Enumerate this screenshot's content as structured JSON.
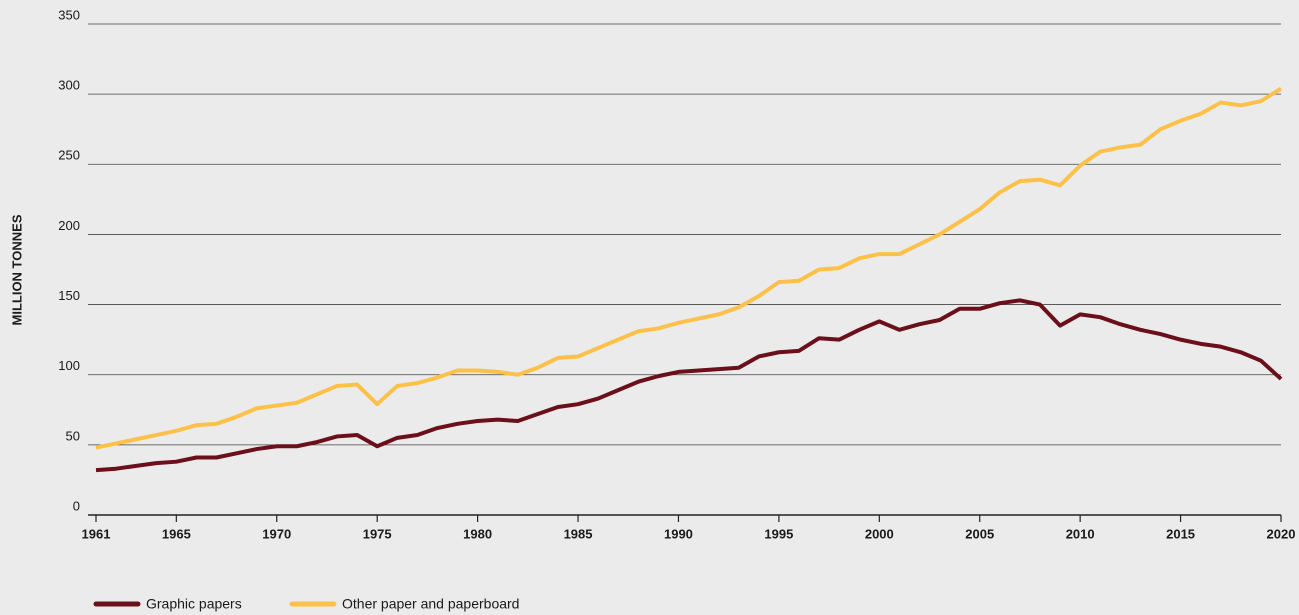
{
  "chart_data": {
    "type": "line",
    "y_label": "MILLION TONNES",
    "x": [
      1961,
      1962,
      1963,
      1964,
      1965,
      1966,
      1967,
      1968,
      1969,
      1970,
      1971,
      1972,
      1973,
      1974,
      1975,
      1976,
      1977,
      1978,
      1979,
      1980,
      1981,
      1982,
      1983,
      1984,
      1985,
      1986,
      1987,
      1988,
      1989,
      1990,
      1991,
      1992,
      1993,
      1994,
      1995,
      1996,
      1997,
      1998,
      1999,
      2000,
      2001,
      2002,
      2003,
      2004,
      2005,
      2006,
      2007,
      2008,
      2009,
      2010,
      2011,
      2012,
      2013,
      2014,
      2015,
      2016,
      2017,
      2018,
      2019,
      2020
    ],
    "series": [
      {
        "name": "Graphic papers",
        "color": "#6b0f1a",
        "values": [
          32,
          33,
          35,
          37,
          38,
          41,
          41,
          44,
          47,
          49,
          49,
          52,
          56,
          57,
          49,
          55,
          57,
          62,
          65,
          67,
          68,
          67,
          72,
          77,
          79,
          83,
          89,
          95,
          99,
          102,
          103,
          104,
          105,
          113,
          116,
          117,
          126,
          125,
          132,
          138,
          132,
          136,
          139,
          147,
          147,
          151,
          153,
          150,
          135,
          143,
          141,
          136,
          132,
          129,
          125,
          122,
          120,
          116,
          110,
          97
        ]
      },
      {
        "name": "Other paper and paperboard",
        "color": "#fdc149",
        "values": [
          48,
          51,
          54,
          57,
          60,
          64,
          65,
          70,
          76,
          78,
          80,
          86,
          92,
          93,
          79,
          92,
          94,
          98,
          103,
          103,
          102,
          100,
          105,
          112,
          113,
          119,
          125,
          131,
          133,
          137,
          140,
          143,
          148,
          156,
          166,
          167,
          175,
          176,
          183,
          186,
          186,
          193,
          200,
          209,
          218,
          230,
          238,
          239,
          235,
          249,
          259,
          262,
          264,
          275,
          281,
          286,
          294,
          292,
          295,
          304
        ]
      }
    ],
    "xlim": [
      1961,
      2020
    ],
    "xticks": [
      1961,
      1965,
      1970,
      1975,
      1980,
      1985,
      1990,
      1995,
      2000,
      2005,
      2010,
      2015,
      2020
    ],
    "ylim": [
      0,
      350
    ],
    "yticks": [
      0,
      50,
      100,
      150,
      200,
      250,
      300,
      350
    ],
    "grid": true,
    "legend": "bottom-left"
  }
}
